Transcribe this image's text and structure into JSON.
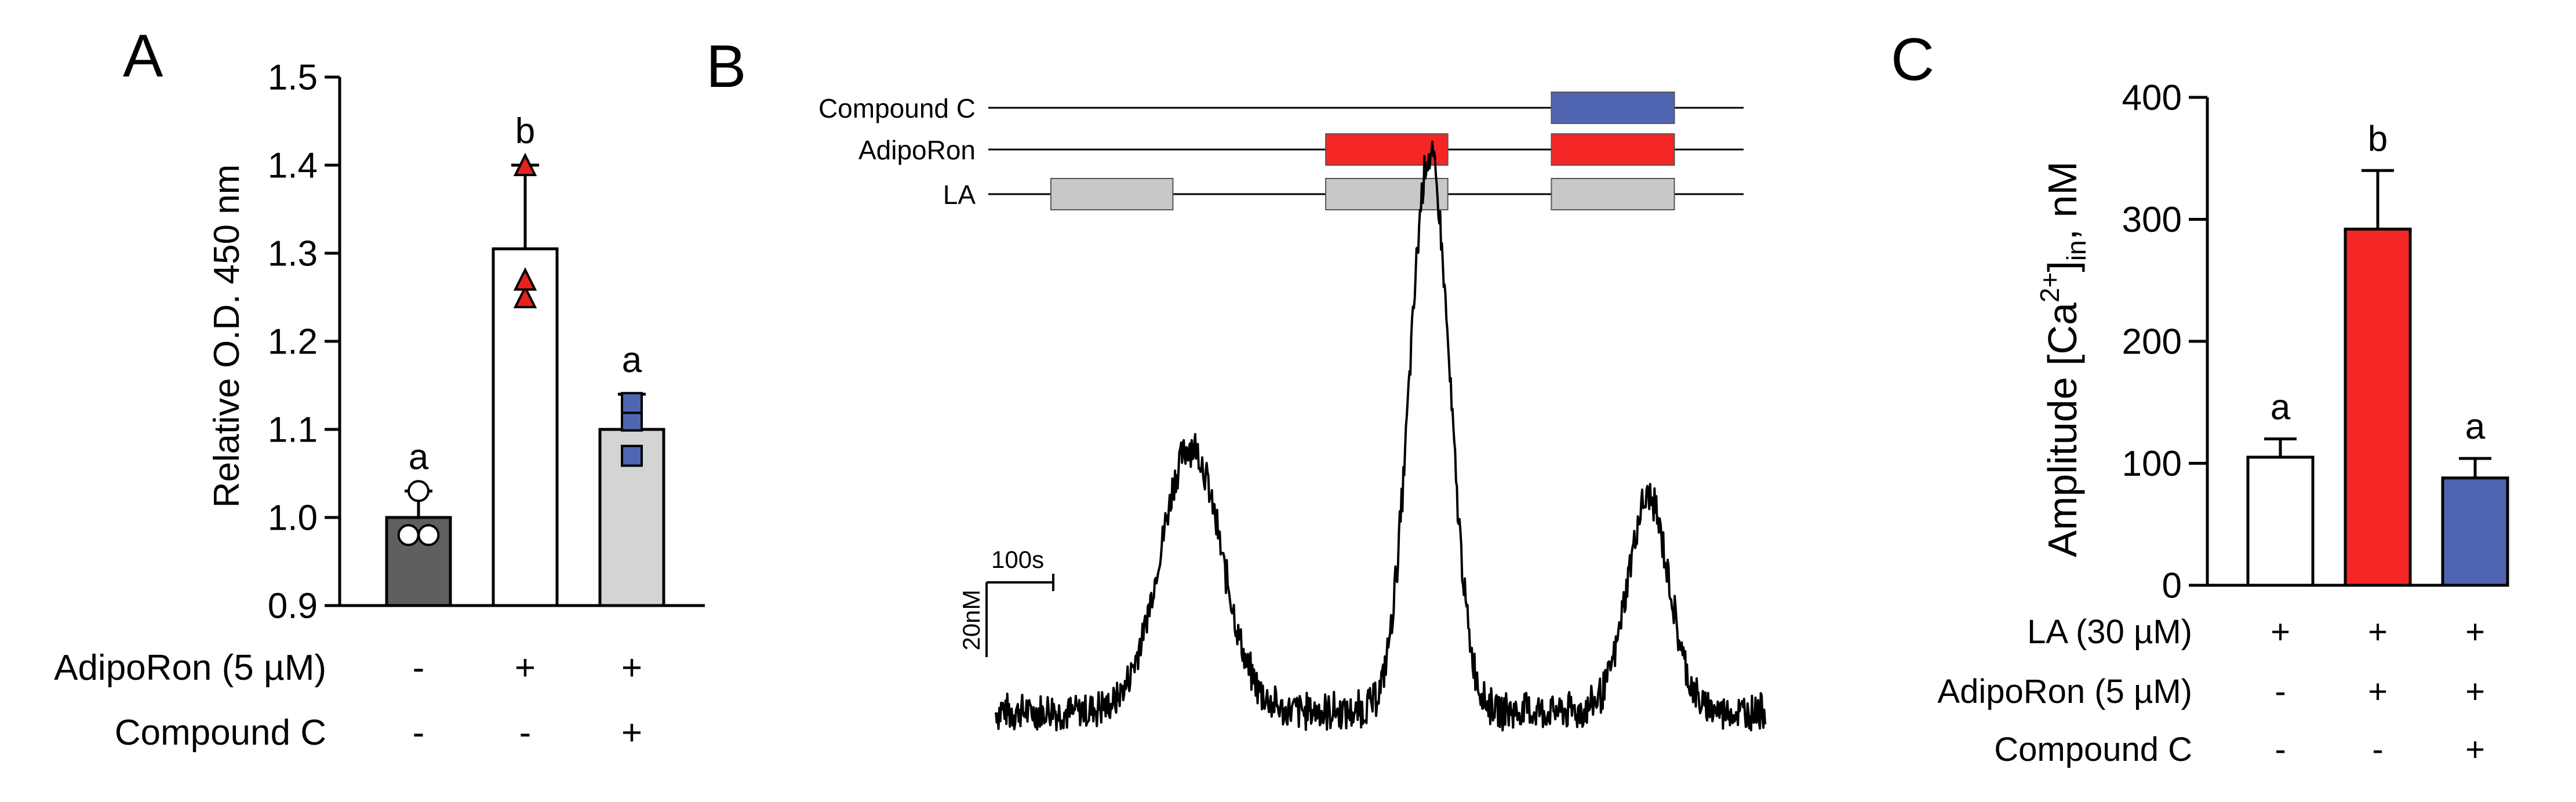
{
  "panels": [
    {
      "letter": "A"
    },
    {
      "letter": "B"
    },
    {
      "letter": "C"
    }
  ],
  "chart_data": [
    {
      "panel": "A",
      "type": "bar",
      "ylabel": "Relative O.D. 450 nm",
      "ylim": [
        0.9,
        1.5
      ],
      "yticks": [
        "0.9",
        "1.0",
        "1.1",
        "1.2",
        "1.3",
        "1.4",
        "1.5"
      ],
      "yvalues": [
        0.9,
        1.0,
        1.1,
        1.2,
        1.3,
        1.4,
        1.5
      ],
      "bars": [
        {
          "value": 1.0,
          "sd": 0.03,
          "letter": "a",
          "color": "#5f605e",
          "points": [
            0.98,
            0.98,
            1.03
          ],
          "marker": "circle",
          "marker_color": "#ffffff"
        },
        {
          "value": 1.305,
          "sd": 0.095,
          "letter": "b",
          "color": "#ffffff",
          "points": [
            1.25,
            1.27,
            1.4
          ],
          "marker": "triangle",
          "marker_color": "#e8211f"
        },
        {
          "value": 1.1,
          "sd": 0.04,
          "letter": "a",
          "color": "#d3d5d4",
          "points": [
            1.07,
            1.11,
            1.13
          ],
          "marker": "square",
          "marker_color": "#5065b2"
        }
      ],
      "conditions": [
        {
          "label": "AdipoRon (5 µM)",
          "values": [
            "-",
            "+",
            "+"
          ]
        },
        {
          "label": "Compound C",
          "values": [
            "-",
            "-",
            "+"
          ]
        }
      ]
    },
    {
      "panel": "B",
      "type": "line",
      "treatments": [
        {
          "label": "Compound C",
          "blocks": [
            [
              628,
              768
            ]
          ],
          "color": "#5065b2"
        },
        {
          "label": "AdipoRon",
          "blocks": [
            [
              371,
              510
            ],
            [
              628,
              768
            ]
          ],
          "color": "#f42626"
        },
        {
          "label": "LA",
          "blocks": [
            [
              58,
              197
            ],
            [
              371,
              510
            ],
            [
              628,
              768
            ]
          ],
          "color": "#c8c8c8"
        }
      ],
      "scalebar": {
        "x_label": "100s",
        "y_label": "20nM"
      },
      "peaks": [
        {
          "center": 222,
          "height": 71,
          "width": 58
        },
        {
          "center": 494,
          "height": 149,
          "width": 38
        },
        {
          "center": 743,
          "height": 57,
          "width": 40
        }
      ],
      "baseline": 10
    },
    {
      "panel": "C",
      "type": "bar",
      "ylabel_main": "Amplitude [Ca",
      "ylabel_sup": "2+",
      "ylabel_bracket": "]",
      "ylabel_sub": "in",
      "ylabel_unit": ", nM",
      "ylim": [
        0,
        400
      ],
      "yticks": [
        "0",
        "100",
        "200",
        "300",
        "400"
      ],
      "yvalues": [
        0,
        100,
        200,
        300,
        400
      ],
      "bars": [
        {
          "value": 105,
          "sd": 15,
          "letter": "a",
          "color": "#ffffff"
        },
        {
          "value": 292,
          "sd": 48,
          "letter": "b",
          "color": "#f42626"
        },
        {
          "value": 88,
          "sd": 16,
          "letter": "a",
          "color": "#5065b2"
        }
      ],
      "conditions": [
        {
          "label": "LA (30 µM)",
          "values": [
            "+",
            "+",
            "+"
          ]
        },
        {
          "label": "AdipoRon (5 µM)",
          "values": [
            "-",
            "+",
            "+"
          ]
        },
        {
          "label": "Compound C",
          "values": [
            "-",
            "-",
            "+"
          ]
        }
      ]
    }
  ]
}
